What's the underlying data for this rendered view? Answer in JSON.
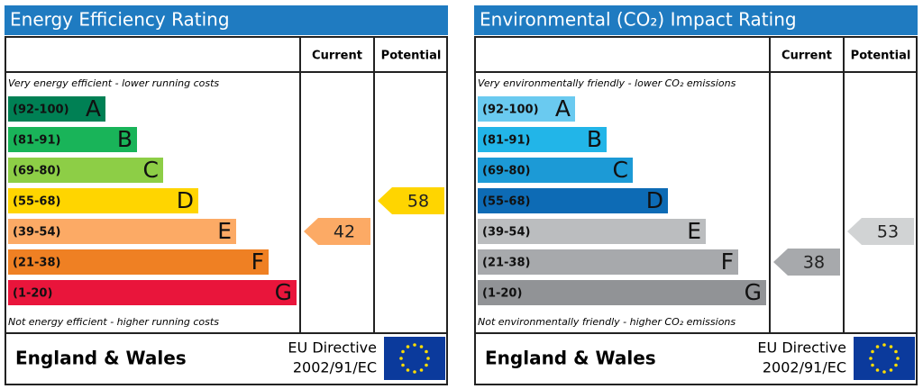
{
  "panels": [
    {
      "title": "Energy Efficiency Rating",
      "header_current": "Current",
      "header_potential": "Potential",
      "top_note": "Very energy efficient - lower running costs",
      "bottom_note": "Not energy efficient - higher running costs",
      "bands": [
        {
          "range": "(92-100)",
          "letter": "A",
          "color": "#008054"
        },
        {
          "range": "(81-91)",
          "letter": "B",
          "color": "#19b459"
        },
        {
          "range": "(69-80)",
          "letter": "C",
          "color": "#8dce46"
        },
        {
          "range": "(55-68)",
          "letter": "D",
          "color": "#ffd500"
        },
        {
          "range": "(39-54)",
          "letter": "E",
          "color": "#fcaa65"
        },
        {
          "range": "(21-38)",
          "letter": "F",
          "color": "#ef8023"
        },
        {
          "range": "(1-20)",
          "letter": "G",
          "color": "#e9153b"
        }
      ],
      "current": {
        "value": 42,
        "color": "#fcaa65"
      },
      "potential": {
        "value": 58,
        "color": "#ffd500"
      },
      "footer_region": "England & Wales",
      "footer_directive": [
        "EU Directive",
        "2002/91/EC"
      ]
    },
    {
      "title": "Environmental (CO₂) Impact Rating",
      "header_current": "Current",
      "header_potential": "Potential",
      "top_note": "Very environmentally friendly - lower CO₂ emissions",
      "bottom_note": "Not environmentally friendly - higher CO₂ emissions",
      "bands": [
        {
          "range": "(92-100)",
          "letter": "A",
          "color": "#6acaf0"
        },
        {
          "range": "(81-91)",
          "letter": "B",
          "color": "#22b5e8"
        },
        {
          "range": "(69-80)",
          "letter": "C",
          "color": "#1c9ad6"
        },
        {
          "range": "(55-68)",
          "letter": "D",
          "color": "#0d6bb5"
        },
        {
          "range": "(39-54)",
          "letter": "E",
          "color": "#bbbdbf"
        },
        {
          "range": "(21-38)",
          "letter": "F",
          "color": "#a7a9ac"
        },
        {
          "range": "(1-20)",
          "letter": "G",
          "color": "#919396"
        }
      ],
      "current": {
        "value": 38,
        "color": "#a7a9ac"
      },
      "potential": {
        "value": 53,
        "color": "#d1d3d4"
      },
      "footer_region": "England & Wales",
      "footer_directive": [
        "EU Directive",
        "2002/91/EC"
      ]
    }
  ]
}
